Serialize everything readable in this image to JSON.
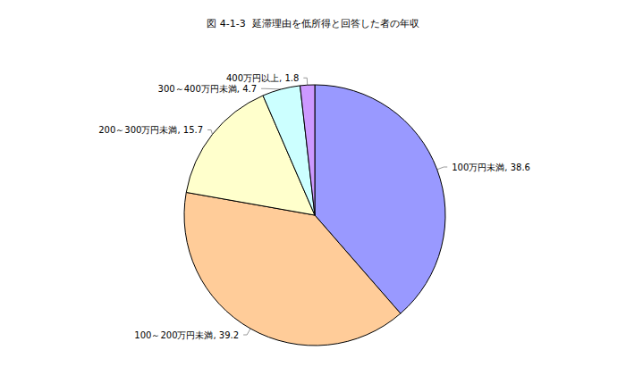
{
  "chart_data": {
    "type": "pie",
    "title": "図 4-1-3  延滞理由を低所得と回答した者の年収",
    "categories": [
      "100万円未満",
      "100～200万円未満",
      "200～300万円未満",
      "300～400万円未満",
      "400万円以上"
    ],
    "values": [
      38.6,
      39.2,
      15.7,
      4.7,
      1.8
    ],
    "value_labels": [
      "100万円未満, 38.6",
      "100～200万円未満, 39.2",
      "200～300万円未満, 15.7",
      "300～400万円未満, 4.7",
      "400万円以上, 1.8"
    ],
    "colors": [
      "#9999ff",
      "#ffcc99",
      "#ffffcc",
      "#ccffff",
      "#cc99ff"
    ],
    "data_labels": true
  }
}
